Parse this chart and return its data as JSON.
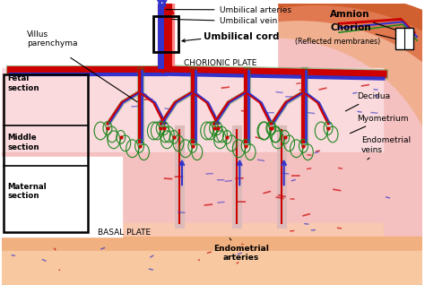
{
  "color_artery": "#CC0000",
  "color_vein": "#3333CC",
  "color_villus": "#228822",
  "color_black": "#000000",
  "color_pink_light": "#FADADD",
  "color_pink_mid": "#F5C0C0",
  "color_pink_dark": "#F0A8A8",
  "color_decidua": "#F0B090",
  "color_myometrium": "#E07850",
  "color_outer": "#D06030",
  "color_white": "#FFFFFF",
  "labels": {
    "umbilical_arteries": "Umbilical arteries",
    "umbilical_vein": "Umbilical vein",
    "umbilical_cord": "Umbilical cord",
    "villus_parenchyma": "Villus\nparenchyma",
    "chorionic_plate": "CHORIONIC PLATE",
    "basal_plate": "BASAL PLATE",
    "fetal_section": "Fetal\nsection",
    "middle_section": "Middle\nsection",
    "maternal_section": "Maternal\nsection",
    "amnion": "Amnion",
    "chorion": "Chorion",
    "reflected": "(Reflected membranes)",
    "decidua": "Decidua",
    "myometrium": "Myometrium",
    "endometrial_veins": "Endometrial\nveins",
    "endometrial_arteries": "Endometrial\narteries"
  }
}
